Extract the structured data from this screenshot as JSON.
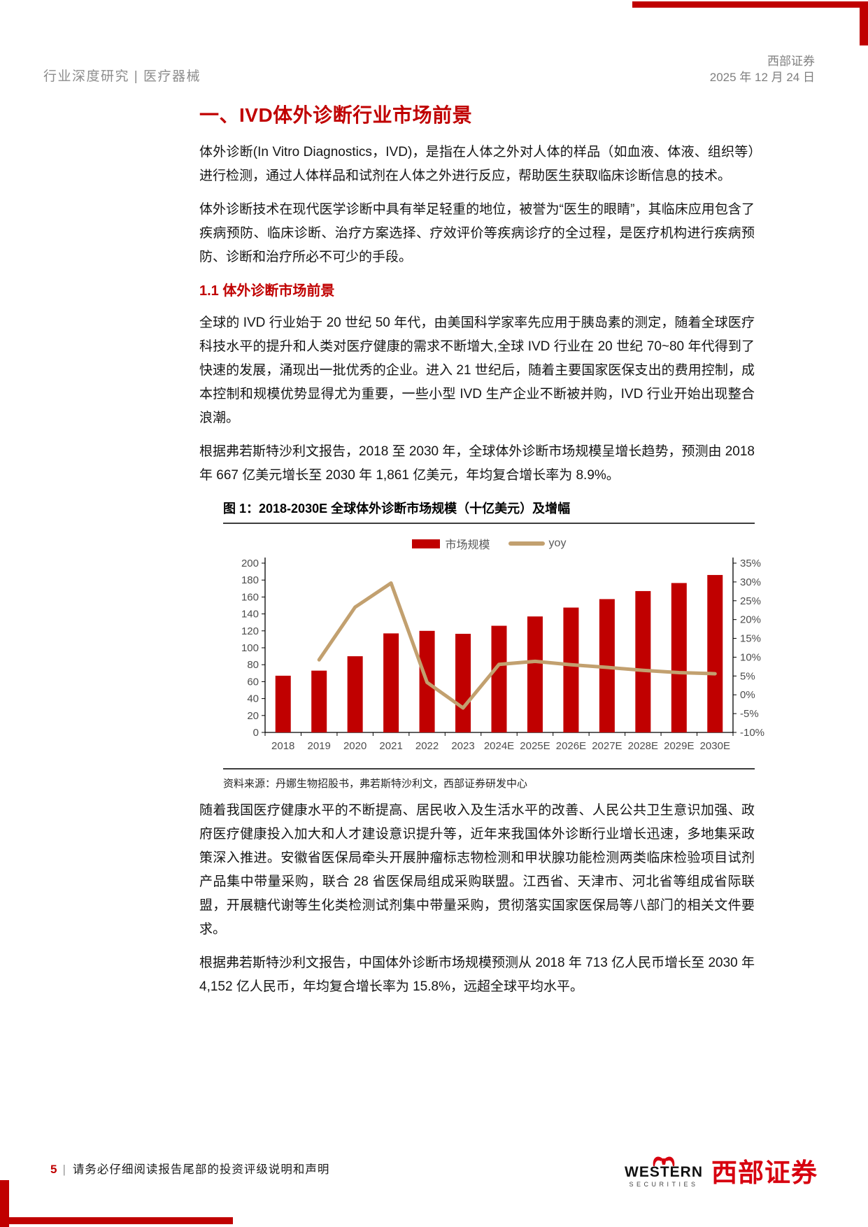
{
  "palette": {
    "accent_red": "#c00000",
    "line_tan": "#c2a06f",
    "logo_red": "#d7000f"
  },
  "header": {
    "section": "行业深度研究 | 医疗器械",
    "company": "西部证券",
    "date": "2025 年 12 月 24 日"
  },
  "content": {
    "h1": "一、IVD体外诊断行业市场前景",
    "p1": "体外诊断(In Vitro Diagnostics，IVD)，是指在人体之外对人体的样品（如血液、体液、组织等）进行检测，通过人体样品和试剂在人体之外进行反应，帮助医生获取临床诊断信息的技术。",
    "p2": "体外诊断技术在现代医学诊断中具有举足轻重的地位，被誉为“医生的眼睛”，其临床应用包含了疾病预防、临床诊断、治疗方案选择、疗效评价等疾病诊疗的全过程，是医疗机构进行疾病预防、诊断和治疗所必不可少的手段。",
    "h2": "1.1 体外诊断市场前景",
    "p3": "全球的 IVD 行业始于 20 世纪 50 年代，由美国科学家率先应用于胰岛素的测定，随着全球医疗科技水平的提升和人类对医疗健康的需求不断增大,全球 IVD 行业在 20 世纪 70~80 年代得到了快速的发展，涌现出一批优秀的企业。进入 21 世纪后，随着主要国家医保支出的费用控制，成本控制和规模优势显得尤为重要，一些小型 IVD 生产企业不断被并购，IVD 行业开始出现整合浪潮。",
    "p4": "根据弗若斯特沙利文报告，2018 至 2030 年，全球体外诊断市场规模呈增长趋势，预测由 2018 年 667 亿美元增长至 2030 年 1,861 亿美元，年均复合增长率为 8.9%。",
    "p5": "随着我国医疗健康水平的不断提高、居民收入及生活水平的改善、人民公共卫生意识加强、政府医疗健康投入加大和人才建设意识提升等，近年来我国体外诊断行业增长迅速，多地集采政策深入推进。安徽省医保局牵头开展肿瘤标志物检测和甲状腺功能检测两类临床检验项目试剂产品集中带量采购，联合 28 省医保局组成采购联盟。江西省、天津市、河北省等组成省际联盟，开展糖代谢等生化类检测试剂集中带量采购，贯彻落实国家医保局等八部门的相关文件要求。",
    "p6": "根据弗若斯特沙利文报告，中国体外诊断市场规模预测从 2018 年 713 亿人民币增长至 2030 年 4,152 亿人民币，年均复合增长率为 15.8%，远超全球平均水平。"
  },
  "figure": {
    "title": "图 1：2018-2030E 全球体外诊断市场规模（十亿美元）及增幅",
    "source": "资料来源：丹娜生物招股书，弗若斯特沙利文，西部证券研发中心"
  },
  "chart_data": {
    "type": "bar+line",
    "title": "2018-2030E 全球体外诊断市场规模（十亿美元）及增幅",
    "categories": [
      "2018",
      "2019",
      "2020",
      "2021",
      "2022",
      "2023",
      "2024E",
      "2025E",
      "2026E",
      "2027E",
      "2028E",
      "2029E",
      "2030E"
    ],
    "series": [
      {
        "name": "市场规模",
        "type": "bar",
        "axis": "left",
        "color": "#c00000",
        "values": [
          67,
          73,
          90,
          117,
          120,
          116.5,
          126,
          137,
          147.5,
          157.5,
          167,
          176.5,
          186
        ]
      },
      {
        "name": "yoy",
        "type": "line",
        "axis": "right",
        "color": "#c2a06f",
        "values": [
          null,
          9.3,
          23.3,
          29.7,
          3.3,
          -3.5,
          8.1,
          8.9,
          8.0,
          7.3,
          6.5,
          5.9,
          5.6
        ]
      }
    ],
    "left_axis": {
      "min": 0,
      "max": 200,
      "step": 20,
      "ticks": [
        "200",
        "180",
        "160",
        "140",
        "120",
        "100",
        "80",
        "60",
        "40",
        "20",
        "0"
      ]
    },
    "right_axis": {
      "min": -10,
      "max": 35,
      "step": 5,
      "ticks": [
        "35%",
        "30%",
        "25%",
        "20%",
        "15%",
        "10%",
        "5%",
        "0%",
        "-5%",
        "-10%"
      ]
    },
    "grid": false,
    "legend_position": "top"
  },
  "footer": {
    "page_number": "5",
    "separator": "|",
    "disclaimer": "请务必仔细阅读报告尾部的投资评级说明和声明",
    "logo_en": "WESTERN",
    "logo_sub": "SECURITIES",
    "logo_cn": "西部证券"
  }
}
